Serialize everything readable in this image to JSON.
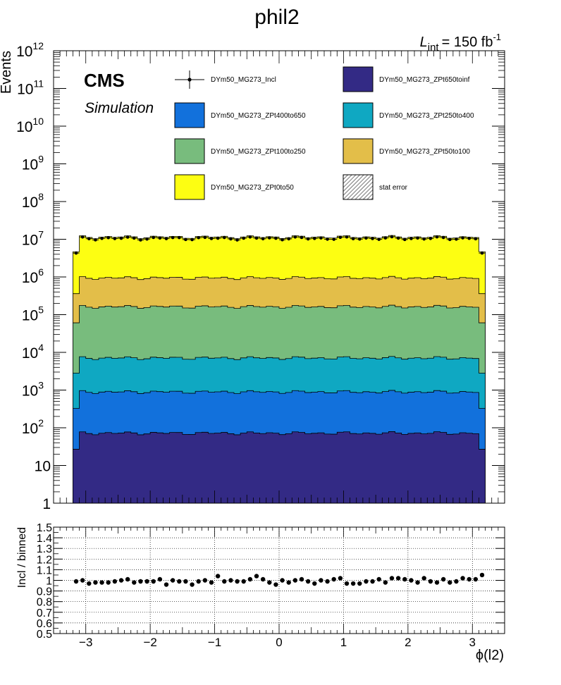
{
  "title": "phil2",
  "lumi": {
    "symbol": "L",
    "sub": "int",
    "value": "= 150 fb",
    "sup": "-1"
  },
  "cms": {
    "label": "CMS",
    "sublabel": "Simulation"
  },
  "colors": {
    "ZPt0to50": "#fdfe12",
    "ZPt50to100": "#e3be49",
    "ZPt100to250": "#78bc7d",
    "ZPt250to400": "#0fa8c2",
    "ZPt400to650": "#1271dc",
    "ZPt650toinf": "#332a85"
  },
  "chart_data": [
    {
      "type": "bar",
      "stacked": true,
      "ylabel": "Events",
      "yscale": "log",
      "ylim": [
        1,
        1000000000000
      ],
      "yticks": [
        {
          "v": 1,
          "base": "1",
          "exp": ""
        },
        {
          "v": 10,
          "base": "10",
          "exp": ""
        },
        {
          "v": 100,
          "base": "10",
          "exp": "2"
        },
        {
          "v": 1000,
          "base": "10",
          "exp": "3"
        },
        {
          "v": 10000,
          "base": "10",
          "exp": "4"
        },
        {
          "v": 100000,
          "base": "10",
          "exp": "5"
        },
        {
          "v": 1000000,
          "base": "10",
          "exp": "6"
        },
        {
          "v": 10000000,
          "base": "10",
          "exp": "7"
        },
        {
          "v": 100000000,
          "base": "10",
          "exp": "8"
        },
        {
          "v": 1000000000,
          "base": "10",
          "exp": "9"
        },
        {
          "v": 10000000000,
          "base": "10",
          "exp": "10"
        },
        {
          "v": 100000000000,
          "base": "10",
          "exp": "11"
        },
        {
          "v": 1000000000000,
          "base": "10",
          "exp": "12"
        }
      ],
      "xlim": [
        -3.5,
        3.5
      ],
      "histogram_range": [
        -3.2,
        3.2
      ],
      "bins": 64,
      "series": [
        {
          "name": "DYm50_MG273_ZPt650toinf",
          "key": "ZPt650toinf",
          "value": 72,
          "edge": 27
        },
        {
          "name": "DYm50_MG273_ZPt400to650",
          "key": "ZPt400to650",
          "value": 820,
          "edge": 300
        },
        {
          "name": "DYm50_MG273_ZPt250to400",
          "key": "ZPt250to400",
          "value": 6200,
          "edge": 2500
        },
        {
          "name": "DYm50_MG273_ZPt100to250",
          "key": "ZPt100to250",
          "value": 155000,
          "edge": 58000
        },
        {
          "name": "DYm50_MG273_ZPt50to100",
          "key": "ZPt50to100",
          "value": 780000,
          "edge": 300000
        },
        {
          "name": "DYm50_MG273_ZPt0to50",
          "key": "ZPt0to50",
          "value": 10500000,
          "edge": 4300000
        }
      ],
      "data_series": {
        "name": "DYm50_MG273_Incl",
        "value": 10600000,
        "edge": 4300000
      },
      "legend": [
        {
          "label": "DYm50_MG273_Incl",
          "kind": "marker"
        },
        {
          "label": "DYm50_MG273_ZPt650toinf",
          "kind": "box",
          "key": "ZPt650toinf"
        },
        {
          "label": "DYm50_MG273_ZPt400to650",
          "kind": "box",
          "key": "ZPt400to650"
        },
        {
          "label": "DYm50_MG273_ZPt250to400",
          "kind": "box",
          "key": "ZPt250to400"
        },
        {
          "label": "DYm50_MG273_ZPt100to250",
          "kind": "box",
          "key": "ZPt100to250"
        },
        {
          "label": "DYm50_MG273_ZPt50to100",
          "kind": "box",
          "key": "ZPt50to100"
        },
        {
          "label": "DYm50_MG273_ZPt0to50",
          "kind": "box",
          "key": "ZPt0to50"
        },
        {
          "label": "stat error",
          "kind": "hatch"
        }
      ]
    },
    {
      "type": "scatter",
      "ylabel": "Incl / binned",
      "xlabel": "ϕ(l2)",
      "ylim": [
        0.5,
        1.5
      ],
      "yticks": [
        "0.5",
        "0.6",
        "0.7",
        "0.8",
        "0.9",
        "1",
        "1.1",
        "1.2",
        "1.3",
        "1.4",
        "1.5"
      ],
      "xticks": [
        {
          "v": -3,
          "label": "−3"
        },
        {
          "v": -2,
          "label": "−2"
        },
        {
          "v": -1,
          "label": "−1"
        },
        {
          "v": 0,
          "label": "0"
        },
        {
          "v": 1,
          "label": "1"
        },
        {
          "v": 2,
          "label": "2"
        },
        {
          "v": 3,
          "label": "3"
        }
      ],
      "grid": true,
      "ratios": [
        0.99,
        1.0,
        0.97,
        0.98,
        0.98,
        0.98,
        0.99,
        1.0,
        1.01,
        0.98,
        0.99,
        0.99,
        0.99,
        1.01,
        0.96,
        1.0,
        0.99,
        0.99,
        0.96,
        0.99,
        1.0,
        0.98,
        1.04,
        0.99,
        1.0,
        0.99,
        0.99,
        1.01,
        1.04,
        1.01,
        0.98,
        0.96,
        1.0,
        0.98,
        1.0,
        1.01,
        0.99,
        0.97,
        1.0,
        0.99,
        1.01,
        1.02,
        0.97,
        0.97,
        0.97,
        0.99,
        0.99,
        1.01,
        0.98,
        1.02,
        1.02,
        1.01,
        1.0,
        0.98,
        1.02,
        0.99,
        0.98,
        1.01,
        0.98,
        0.99,
        1.02,
        1.01,
        1.01,
        1.05
      ]
    }
  ]
}
